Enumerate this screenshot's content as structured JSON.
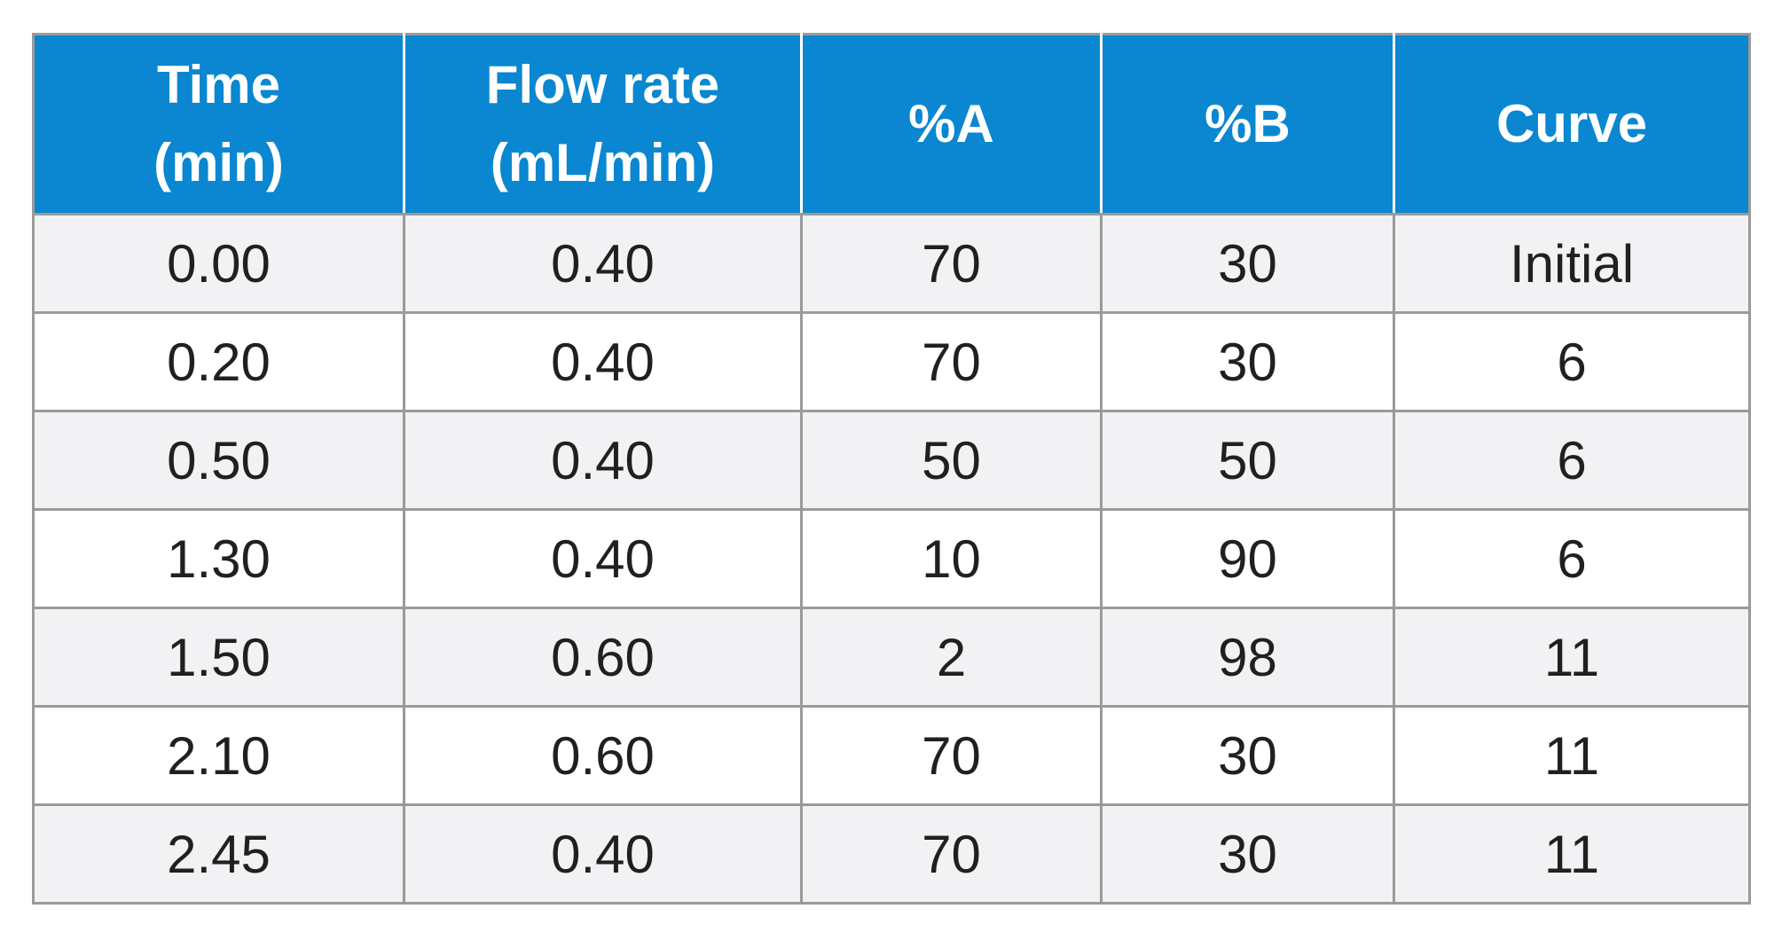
{
  "table": {
    "headers": [
      {
        "line1": "Time",
        "line2": "(min)"
      },
      {
        "line1": "Flow rate",
        "line2": "(mL/min)"
      },
      {
        "line1": "%A",
        "line2": ""
      },
      {
        "line1": "%B",
        "line2": ""
      },
      {
        "line1": "Curve",
        "line2": ""
      }
    ],
    "rows": [
      [
        "0.00",
        "0.40",
        "70",
        "30",
        "Initial"
      ],
      [
        "0.20",
        "0.40",
        "70",
        "30",
        "6"
      ],
      [
        "0.50",
        "0.40",
        "50",
        "50",
        "6"
      ],
      [
        "1.30",
        "0.40",
        "10",
        "90",
        "6"
      ],
      [
        "1.50",
        "0.60",
        "2",
        "98",
        "11"
      ],
      [
        "2.10",
        "0.60",
        "70",
        "30",
        "11"
      ],
      [
        "2.45",
        "0.40",
        "70",
        "30",
        "11"
      ]
    ]
  },
  "colors": {
    "header_background": "#0a87d0",
    "header_text": "#ffffff",
    "row_alt_background": "#f2f2f4",
    "row_background": "#ffffff",
    "grid_line": "#9a9a9a",
    "cell_text": "#231f20"
  }
}
